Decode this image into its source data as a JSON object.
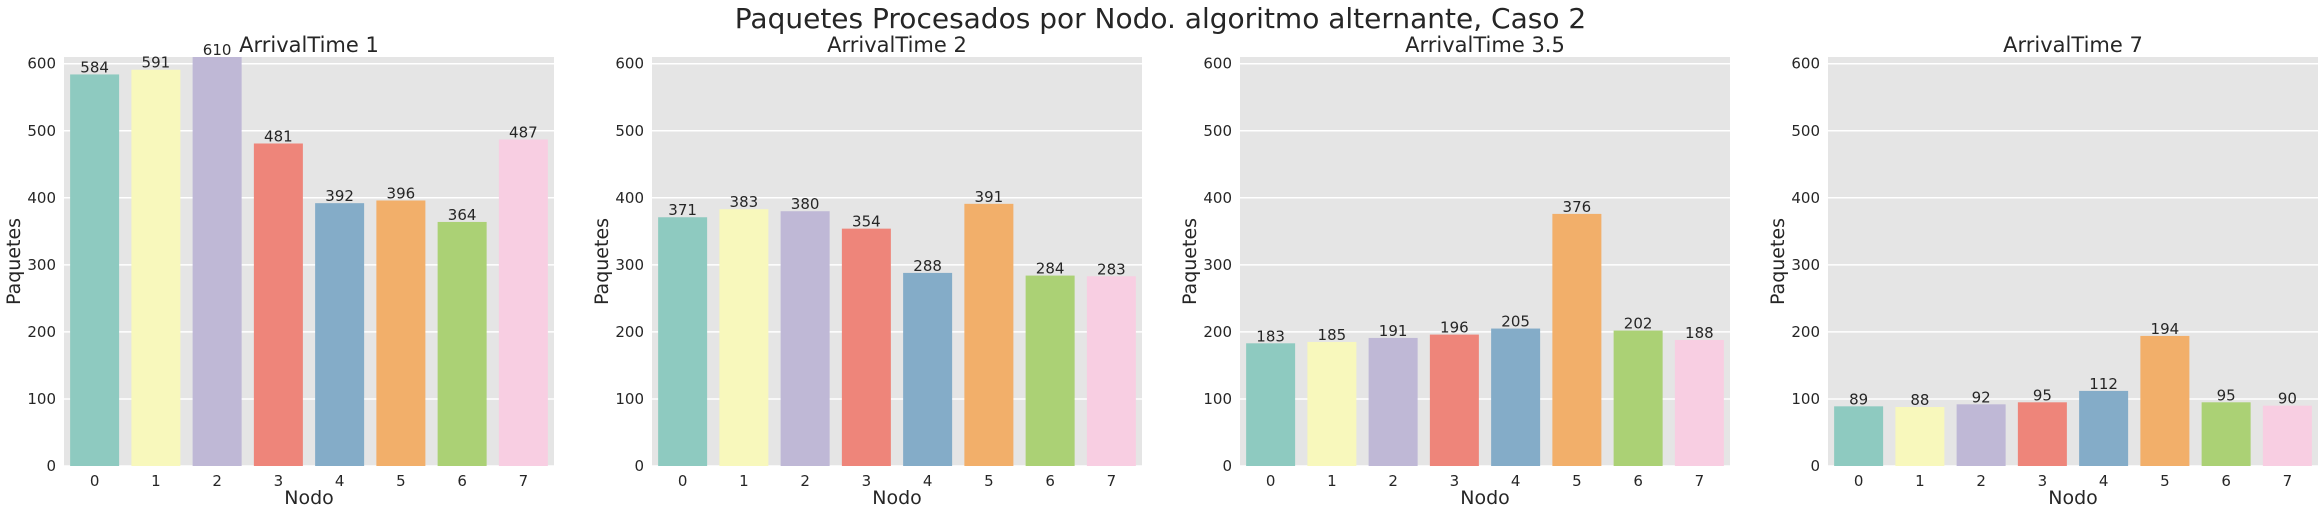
{
  "suptitle": "Paquetes Procesados por Nodo. algoritmo alternante, Caso 2",
  "colors": [
    "#8ECAC0",
    "#F8F8BC",
    "#BFB8D6",
    "#EE857A",
    "#84ACC8",
    "#F2AF6A",
    "#ABD175",
    "#F8CEE2"
  ],
  "chart_data": [
    {
      "type": "bar",
      "title": "ArrivalTime 1",
      "xlabel": "Nodo",
      "ylabel": "Paquetes",
      "categories": [
        "0",
        "1",
        "2",
        "3",
        "4",
        "5",
        "6",
        "7"
      ],
      "values": [
        584,
        591,
        610,
        481,
        392,
        396,
        364,
        487
      ],
      "ylim": [
        0,
        610
      ],
      "yticks": [
        0,
        100,
        200,
        300,
        400,
        500,
        600
      ],
      "grid": true
    },
    {
      "type": "bar",
      "title": "ArrivalTime 2",
      "xlabel": "Nodo",
      "ylabel": "Paquetes",
      "categories": [
        "0",
        "1",
        "2",
        "3",
        "4",
        "5",
        "6",
        "7"
      ],
      "values": [
        371,
        383,
        380,
        354,
        288,
        391,
        284,
        283
      ],
      "ylim": [
        0,
        610
      ],
      "yticks": [
        0,
        100,
        200,
        300,
        400,
        500,
        600
      ],
      "grid": true
    },
    {
      "type": "bar",
      "title": "ArrivalTime 3.5",
      "xlabel": "Nodo",
      "ylabel": "Paquetes",
      "categories": [
        "0",
        "1",
        "2",
        "3",
        "4",
        "5",
        "6",
        "7"
      ],
      "values": [
        183,
        185,
        191,
        196,
        205,
        376,
        202,
        188
      ],
      "ylim": [
        0,
        610
      ],
      "yticks": [
        0,
        100,
        200,
        300,
        400,
        500,
        600
      ],
      "grid": true
    },
    {
      "type": "bar",
      "title": "ArrivalTime 7",
      "xlabel": "Nodo",
      "ylabel": "Paquetes",
      "categories": [
        "0",
        "1",
        "2",
        "3",
        "4",
        "5",
        "6",
        "7"
      ],
      "values": [
        89,
        88,
        92,
        95,
        112,
        194,
        95,
        90
      ],
      "ylim": [
        0,
        610
      ],
      "yticks": [
        0,
        100,
        200,
        300,
        400,
        500,
        600
      ],
      "grid": true
    }
  ]
}
